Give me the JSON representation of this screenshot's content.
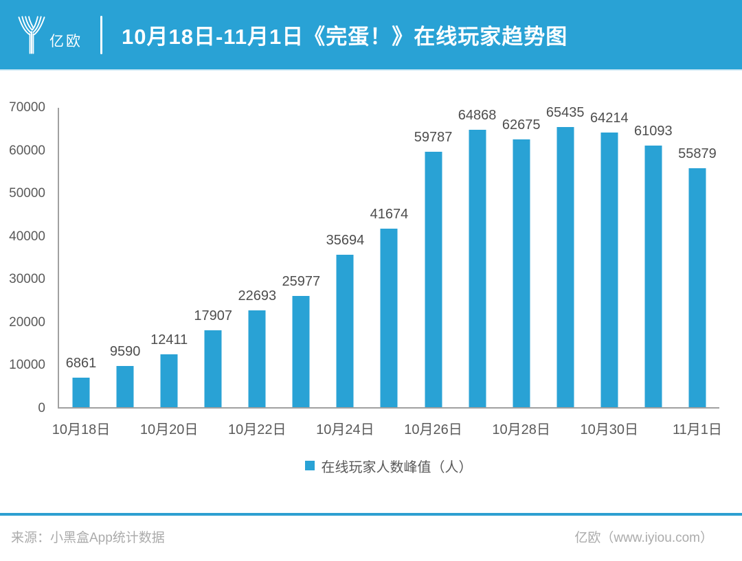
{
  "header": {
    "brand": "亿欧",
    "title": "10月18日-11月1日《完蛋！》在线玩家趋势图"
  },
  "chart_data": {
    "type": "bar",
    "title": "10月18日-11月1日《完蛋！》在线玩家趋势图",
    "values": [
      6861,
      9590,
      12411,
      17907,
      22693,
      25977,
      35694,
      41674,
      59787,
      64868,
      62675,
      65435,
      64214,
      61093,
      55879
    ],
    "data_labels": [
      "6861",
      "9590",
      "12411",
      "17907",
      "22693",
      "25977",
      "35694",
      "41674",
      "59787",
      "64868",
      "62675",
      "65435",
      "64214",
      "61093",
      "55879"
    ],
    "x_tick_labels": [
      "10月18日",
      "10月20日",
      "10月22日",
      "10月24日",
      "10月26日",
      "10月28日",
      "10月30日",
      "11月1日"
    ],
    "x_tick_every": 2,
    "y_ticks": [
      0,
      10000,
      20000,
      30000,
      40000,
      50000,
      60000,
      70000
    ],
    "ylim": [
      0,
      70000
    ],
    "grid": false,
    "legend": "在线玩家人数峰值（人）",
    "legend_position": "bottom",
    "bar_color": "#29A2D5"
  },
  "footer": {
    "source": "来源：小黑盒App统计数据",
    "site": "亿欧（www.iyiou.com）"
  },
  "colors": {
    "header_bg": "#29A2D5",
    "bar": "#29A2D5",
    "axis_line": "#A0A0A0",
    "tick_text": "#595959",
    "data_label_text": "#4D4D4D",
    "footer_rule": "#2D9FD1",
    "footer_text": "#ABABAB"
  }
}
